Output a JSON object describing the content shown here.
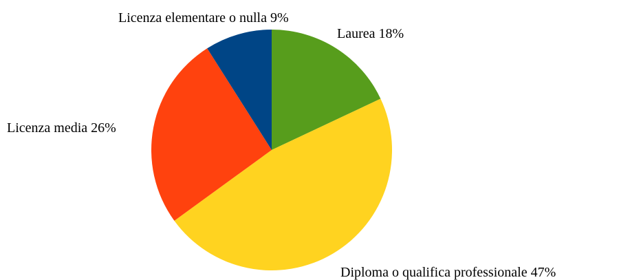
{
  "chart_data": {
    "type": "pie",
    "categories": [
      "Laurea",
      "Diploma o qualifica professionale",
      "Licenza media",
      "Licenza elementare o nulla"
    ],
    "values": [
      18,
      47,
      26,
      9
    ],
    "value_labels": [
      "18%",
      "47%",
      "26%",
      "9%"
    ],
    "colors": [
      "#579d1c",
      "#ffd320",
      "#ff420e",
      "#004586"
    ]
  }
}
